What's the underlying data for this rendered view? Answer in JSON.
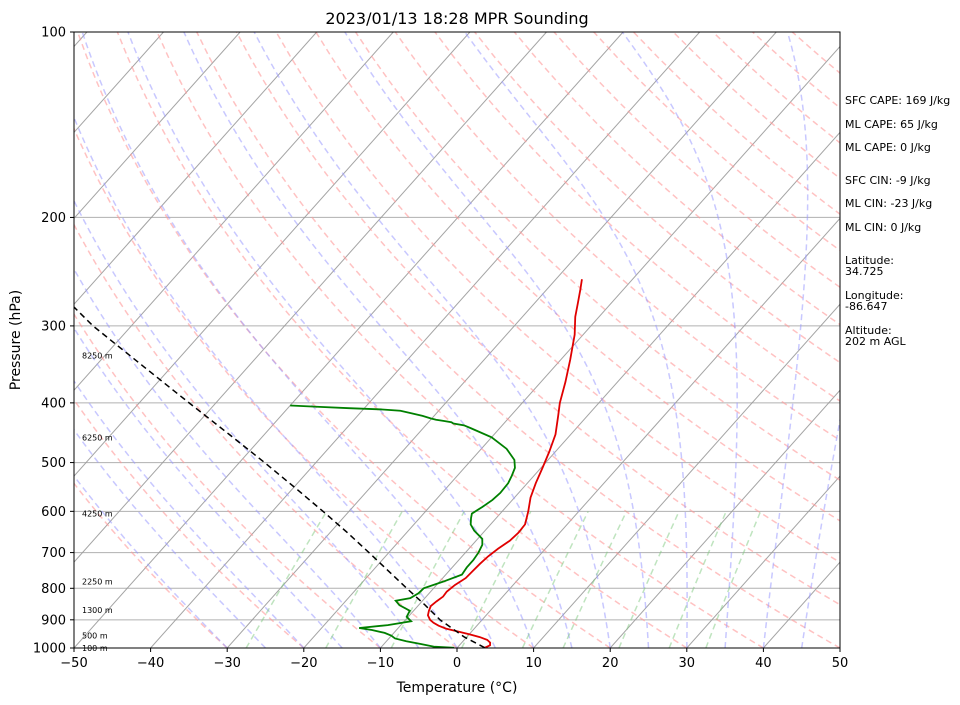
{
  "chart_data": {
    "type": "line",
    "title": "2023/01/13 18:28 MPR Sounding",
    "xlabel": "Temperature (°C)",
    "ylabel": "Pressure (hPa)",
    "xlim": [
      -50,
      50
    ],
    "ylim": [
      1000,
      100
    ],
    "yscale": "log",
    "skew": "skew-T log-P",
    "x_ticks": [
      "−50",
      "−40",
      "−30",
      "−20",
      "−10",
      "0",
      "10",
      "20",
      "30",
      "40",
      "50"
    ],
    "y_ticks": [
      "100",
      "200",
      "300",
      "400",
      "500",
      "600",
      "700",
      "800",
      "900",
      "1000"
    ],
    "grid": true,
    "series": [
      {
        "color": "#e00000",
        "points": [
          [
            999,
            3.6
          ],
          [
            990,
            4.0
          ],
          [
            980,
            3.7
          ],
          [
            970,
            3.0
          ],
          [
            960,
            1.7
          ],
          [
            950,
            0
          ],
          [
            940,
            -1.8
          ],
          [
            930,
            -3.7
          ],
          [
            920,
            -5.0
          ],
          [
            910,
            -6.0
          ],
          [
            900,
            -6.8
          ],
          [
            885,
            -7.6
          ],
          [
            870,
            -8.0
          ],
          [
            855,
            -8.3
          ],
          [
            840,
            -8.1
          ],
          [
            825,
            -7.8
          ],
          [
            810,
            -7.9
          ],
          [
            790,
            -7.6
          ],
          [
            770,
            -7.0
          ],
          [
            750,
            -6.9
          ],
          [
            730,
            -6.8
          ],
          [
            710,
            -6.6
          ],
          [
            690,
            -6.2
          ],
          [
            670,
            -5.6
          ],
          [
            650,
            -5.4
          ],
          [
            630,
            -5.5
          ],
          [
            600,
            -6.6
          ],
          [
            570,
            -7.9
          ],
          [
            540,
            -8.9
          ],
          [
            510,
            -9.8
          ],
          [
            480,
            -10.8
          ],
          [
            450,
            -12.0
          ],
          [
            420,
            -13.8
          ],
          [
            400,
            -15.1
          ],
          [
            370,
            -16.8
          ],
          [
            340,
            -18.8
          ],
          [
            310,
            -21.1
          ],
          [
            290,
            -23.1
          ],
          [
            275,
            -24.4
          ],
          [
            262,
            -25.6
          ],
          [
            252,
            -26.6
          ]
        ]
      },
      {
        "color": "#008000",
        "points": [
          [
            999,
            -0.4
          ],
          [
            995,
            -3.2
          ],
          [
            985,
            -5.2
          ],
          [
            975,
            -7.4
          ],
          [
            965,
            -9.2
          ],
          [
            955,
            -10.0
          ],
          [
            945,
            -11.2
          ],
          [
            935,
            -13.2
          ],
          [
            928,
            -15.1
          ],
          [
            918,
            -11.7
          ],
          [
            905,
            -9.1
          ],
          [
            890,
            -10.2
          ],
          [
            870,
            -10.5
          ],
          [
            852,
            -12.5
          ],
          [
            838,
            -13.5
          ],
          [
            830,
            -11.9
          ],
          [
            815,
            -11.4
          ],
          [
            800,
            -11.3
          ],
          [
            780,
            -9.5
          ],
          [
            760,
            -7.9
          ],
          [
            740,
            -8.1
          ],
          [
            720,
            -8.1
          ],
          [
            700,
            -8.3
          ],
          [
            680,
            -8.7
          ],
          [
            665,
            -9.4
          ],
          [
            645,
            -11.4
          ],
          [
            630,
            -12.6
          ],
          [
            615,
            -13.3
          ],
          [
            605,
            -13.7
          ],
          [
            590,
            -13.1
          ],
          [
            575,
            -12.6
          ],
          [
            560,
            -12.4
          ],
          [
            540,
            -12.5
          ],
          [
            525,
            -12.9
          ],
          [
            510,
            -13.4
          ],
          [
            495,
            -14.4
          ],
          [
            475,
            -16.7
          ],
          [
            455,
            -20.0
          ],
          [
            440,
            -23.7
          ],
          [
            435,
            -25.0
          ],
          [
            432,
            -26.6
          ],
          [
            430,
            -27.0
          ],
          [
            428,
            -28.1
          ],
          [
            426,
            -29.3
          ],
          [
            424,
            -30.1
          ],
          [
            420,
            -31.5
          ],
          [
            416,
            -33.2
          ],
          [
            412,
            -35.0
          ],
          [
            410,
            -37.5
          ],
          [
            408,
            -42.0
          ],
          [
            406,
            -46.0
          ],
          [
            404,
            -50.0
          ]
        ]
      },
      {
        "color": "#000000",
        "dashed": true,
        "points": [
          [
            999,
            3.6
          ],
          [
            960,
            -0.3
          ],
          [
            900,
            -5.5
          ],
          [
            850,
            -9.3
          ],
          [
            800,
            -13.5
          ],
          [
            750,
            -17.9
          ],
          [
            700,
            -22.6
          ],
          [
            650,
            -27.7
          ],
          [
            600,
            -33.4
          ],
          [
            550,
            -39.7
          ],
          [
            500,
            -46.7
          ],
          [
            450,
            -54.6
          ],
          [
            400,
            -63.5
          ],
          [
            350,
            -73.5
          ],
          [
            300,
            -85.0
          ],
          [
            270,
            -92.0
          ]
        ]
      }
    ],
    "height_labels": [
      "100 m",
      "500 m",
      "1300 m",
      "2250 m",
      "4250 m",
      "6250 m",
      "8250 m"
    ],
    "height_label_pressure": [
      1000,
      955,
      868,
      780,
      605,
      455,
      335
    ]
  },
  "side_panel": {
    "sfc_cape": "SFC CAPE: 169 J/kg",
    "ml_cape_1": "ML CAPE: 65 J/kg",
    "ml_cape_2": "ML CAPE: 0 J/kg",
    "sfc_cin": "SFC CIN: -9 J/kg",
    "ml_cin_1": "ML CIN: -23 J/kg",
    "ml_cin_2": "ML CIN: 0 J/kg",
    "latitude_label": "Latitude:",
    "latitude_value": "34.725",
    "longitude_label": "Longitude:",
    "longitude_value": "-86.647",
    "altitude_label": "Altitude:",
    "altitude_value": "202 m AGL"
  }
}
